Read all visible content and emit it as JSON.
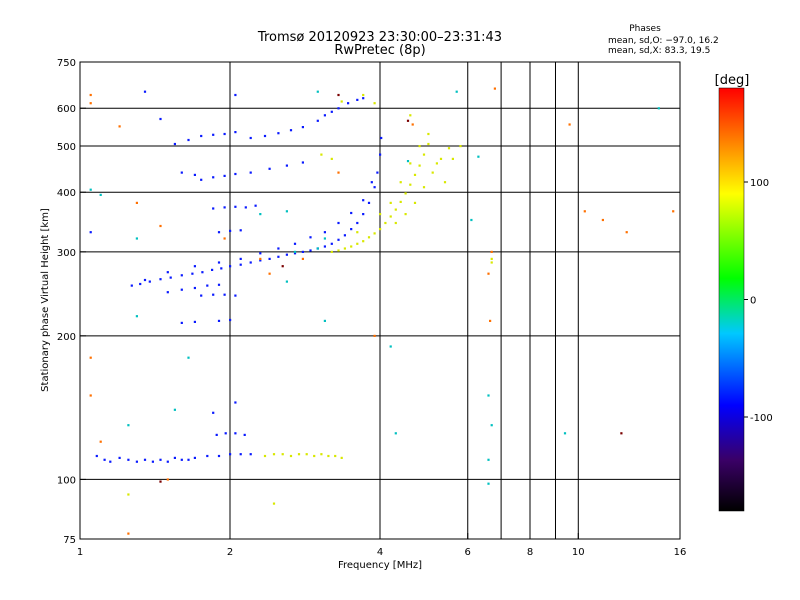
{
  "chart_data": {
    "type": "scatter",
    "title": "Tromsø 20120923 23:30:00–23:31:43",
    "subtitle": "RwPretec (8p)",
    "xlabel": "Frequency [MHz]",
    "ylabel": "Stationary phase Virtual Height [km]",
    "x_scale": "log",
    "y_scale": "log",
    "xlim": [
      1,
      16
    ],
    "ylim": [
      75,
      750
    ],
    "x_ticks": [
      1,
      2,
      4,
      6,
      8,
      10,
      16
    ],
    "y_ticks": [
      75,
      100,
      200,
      300,
      400,
      500,
      600,
      750
    ],
    "x_gridlines": [
      2,
      4,
      6,
      7,
      8,
      9,
      10
    ],
    "y_gridlines": [
      100,
      200,
      300,
      400,
      500,
      600
    ],
    "grid": true,
    "legend": {
      "title": "Phases",
      "lines": [
        "mean, sd,O: −97.0, 16.2",
        "mean, sd,X:  83.3, 19.5"
      ],
      "placement": "top-right"
    },
    "colorbar": {
      "label": "[deg]",
      "range": [
        -180,
        180
      ],
      "ticks": [
        -100,
        0,
        100
      ],
      "placement": "right",
      "colors": [
        "#000000",
        "#3a0066",
        "#0000ff",
        "#00c8ff",
        "#00ff00",
        "#ffff00",
        "#ff0000"
      ]
    },
    "series": [
      {
        "points": [
          [
            1.27,
            255
          ],
          [
            1.32,
            257
          ],
          [
            1.38,
            260
          ],
          [
            1.45,
            263
          ],
          [
            1.52,
            265
          ],
          [
            1.6,
            268
          ],
          [
            1.68,
            270
          ],
          [
            1.76,
            272
          ],
          [
            1.84,
            275
          ],
          [
            1.92,
            277
          ],
          [
            2.0,
            280
          ],
          [
            2.1,
            282
          ],
          [
            2.2,
            285
          ],
          [
            2.3,
            288
          ],
          [
            2.4,
            290
          ],
          [
            2.5,
            293
          ],
          [
            2.6,
            296
          ],
          [
            2.7,
            298
          ],
          [
            2.8,
            300
          ],
          [
            2.9,
            302
          ],
          [
            3.0,
            305
          ],
          [
            3.1,
            308
          ],
          [
            3.2,
            312
          ],
          [
            3.3,
            318
          ],
          [
            3.4,
            325
          ],
          [
            3.5,
            335
          ],
          [
            3.6,
            345
          ],
          [
            3.7,
            360
          ],
          [
            3.8,
            380
          ],
          [
            3.9,
            410
          ],
          [
            3.95,
            440
          ],
          [
            4.0,
            480
          ],
          [
            4.02,
            520
          ],
          [
            1.35,
            262
          ],
          [
            1.5,
            272
          ],
          [
            1.7,
            280
          ],
          [
            1.9,
            285
          ],
          [
            2.1,
            290
          ],
          [
            2.3,
            298
          ],
          [
            2.5,
            305
          ],
          [
            2.7,
            312
          ],
          [
            2.9,
            322
          ],
          [
            3.1,
            330
          ],
          [
            3.3,
            345
          ],
          [
            3.5,
            362
          ],
          [
            3.7,
            385
          ],
          [
            3.85,
            420
          ],
          [
            1.5,
            247
          ],
          [
            1.6,
            250
          ],
          [
            1.7,
            252
          ],
          [
            1.8,
            255
          ],
          [
            1.9,
            256
          ],
          [
            1.75,
            243
          ],
          [
            1.85,
            244
          ],
          [
            1.95,
            244
          ],
          [
            2.05,
            243
          ],
          [
            1.6,
            213
          ],
          [
            1.7,
            214
          ],
          [
            1.9,
            215
          ],
          [
            2.0,
            216
          ],
          [
            1.55,
            505
          ],
          [
            1.65,
            515
          ],
          [
            1.75,
            525
          ],
          [
            1.85,
            528
          ],
          [
            1.95,
            530
          ],
          [
            2.05,
            535
          ],
          [
            2.2,
            520
          ],
          [
            2.35,
            525
          ],
          [
            2.5,
            532
          ],
          [
            2.65,
            540
          ],
          [
            2.8,
            548
          ],
          [
            3.0,
            565
          ],
          [
            3.1,
            580
          ],
          [
            3.2,
            590
          ],
          [
            3.3,
            600
          ],
          [
            3.45,
            615
          ],
          [
            3.6,
            625
          ],
          [
            3.7,
            630
          ],
          [
            1.75,
            425
          ],
          [
            1.85,
            430
          ],
          [
            1.95,
            433
          ],
          [
            2.05,
            437
          ],
          [
            2.2,
            440
          ],
          [
            2.4,
            448
          ],
          [
            2.6,
            455
          ],
          [
            2.8,
            462
          ],
          [
            1.6,
            440
          ],
          [
            1.7,
            435
          ],
          [
            1.85,
            370
          ],
          [
            1.95,
            372
          ],
          [
            2.05,
            373
          ],
          [
            2.15,
            372
          ],
          [
            2.25,
            375
          ],
          [
            1.9,
            330
          ],
          [
            2.0,
            332
          ],
          [
            2.1,
            333
          ],
          [
            1.08,
            112
          ],
          [
            1.12,
            110
          ],
          [
            1.15,
            109
          ],
          [
            1.2,
            111
          ],
          [
            1.25,
            110
          ],
          [
            1.3,
            109
          ],
          [
            1.35,
            110
          ],
          [
            1.4,
            109
          ],
          [
            1.45,
            110
          ],
          [
            1.5,
            109
          ],
          [
            1.55,
            111
          ],
          [
            1.6,
            110
          ],
          [
            1.65,
            110
          ],
          [
            1.7,
            111
          ],
          [
            1.8,
            112
          ],
          [
            1.9,
            112
          ],
          [
            2.0,
            113
          ],
          [
            2.1,
            113
          ],
          [
            2.2,
            113
          ],
          [
            1.88,
            124
          ],
          [
            1.96,
            125
          ],
          [
            2.05,
            125
          ],
          [
            2.14,
            124
          ],
          [
            1.35,
            650
          ],
          [
            1.45,
            570
          ],
          [
            2.05,
            640
          ],
          [
            1.05,
            330
          ],
          [
            1.85,
            138
          ],
          [
            2.05,
            145
          ]
        ],
        "color": "#0a1aff"
      },
      {
        "points": [
          [
            3.2,
            300
          ],
          [
            3.3,
            302
          ],
          [
            3.4,
            305
          ],
          [
            3.5,
            308
          ],
          [
            3.6,
            312
          ],
          [
            3.7,
            316
          ],
          [
            3.8,
            322
          ],
          [
            3.9,
            328
          ],
          [
            4.0,
            335
          ],
          [
            4.1,
            345
          ],
          [
            4.2,
            356
          ],
          [
            4.3,
            368
          ],
          [
            4.4,
            382
          ],
          [
            4.5,
            398
          ],
          [
            4.6,
            415
          ],
          [
            4.7,
            435
          ],
          [
            4.8,
            455
          ],
          [
            4.9,
            480
          ],
          [
            5.0,
            505
          ],
          [
            4.3,
            345
          ],
          [
            4.5,
            360
          ],
          [
            4.7,
            380
          ],
          [
            4.9,
            410
          ],
          [
            5.1,
            440
          ],
          [
            5.3,
            470
          ],
          [
            5.5,
            495
          ],
          [
            4.4,
            420
          ],
          [
            4.6,
            460
          ],
          [
            4.8,
            500
          ],
          [
            5.0,
            530
          ],
          [
            5.2,
            460
          ],
          [
            5.4,
            420
          ],
          [
            5.6,
            470
          ],
          [
            5.8,
            500
          ],
          [
            3.6,
            330
          ],
          [
            4.0,
            360
          ],
          [
            4.2,
            380
          ],
          [
            2.35,
            112
          ],
          [
            2.45,
            113
          ],
          [
            2.55,
            113
          ],
          [
            2.65,
            112
          ],
          [
            2.75,
            113
          ],
          [
            2.85,
            113
          ],
          [
            2.95,
            112
          ],
          [
            3.05,
            113
          ],
          [
            3.15,
            112
          ],
          [
            3.25,
            112
          ],
          [
            3.35,
            111
          ],
          [
            3.35,
            620
          ],
          [
            3.7,
            640
          ],
          [
            3.9,
            615
          ],
          [
            4.6,
            580
          ],
          [
            3.05,
            480
          ],
          [
            3.2,
            470
          ],
          [
            1.25,
            93
          ],
          [
            2.45,
            89
          ],
          [
            6.7,
            290
          ],
          [
            6.7,
            285
          ]
        ],
        "color": "#d8e800"
      },
      {
        "points": [
          [
            2.7,
            300
          ],
          [
            3.0,
            305
          ],
          [
            3.1,
            320
          ],
          [
            2.6,
            260
          ],
          [
            3.0,
            650
          ],
          [
            4.2,
            190
          ],
          [
            1.05,
            405
          ],
          [
            1.1,
            395
          ],
          [
            1.3,
            320
          ],
          [
            1.3,
            220
          ],
          [
            1.25,
            130
          ],
          [
            1.55,
            140
          ],
          [
            1.65,
            180
          ],
          [
            2.6,
            365
          ],
          [
            3.1,
            215
          ],
          [
            4.3,
            125
          ],
          [
            6.6,
            150
          ],
          [
            6.7,
            130
          ],
          [
            6.6,
            110
          ],
          [
            6.6,
            98
          ],
          [
            6.3,
            475
          ],
          [
            6.1,
            350
          ],
          [
            9.4,
            125
          ],
          [
            2.3,
            360
          ],
          [
            4.55,
            465
          ],
          [
            5.7,
            650
          ],
          [
            14.5,
            600
          ]
        ],
        "color": "#00c0c0"
      },
      {
        "points": [
          [
            1.05,
            640
          ],
          [
            1.05,
            615
          ],
          [
            1.2,
            550
          ],
          [
            1.3,
            380
          ],
          [
            1.45,
            340
          ],
          [
            1.95,
            320
          ],
          [
            2.3,
            290
          ],
          [
            2.8,
            290
          ],
          [
            1.05,
            180
          ],
          [
            1.05,
            150
          ],
          [
            1.1,
            120
          ],
          [
            1.5,
            100
          ],
          [
            1.25,
            77
          ],
          [
            2.4,
            270
          ],
          [
            3.3,
            440
          ],
          [
            3.9,
            200
          ],
          [
            4.65,
            555
          ],
          [
            6.8,
            660
          ],
          [
            6.7,
            300
          ],
          [
            6.6,
            270
          ],
          [
            10.3,
            365
          ],
          [
            11.2,
            350
          ],
          [
            12.5,
            330
          ],
          [
            15.5,
            365
          ],
          [
            9.6,
            555
          ],
          [
            6.65,
            215
          ]
        ],
        "color": "#ff7000"
      },
      {
        "points": [
          [
            12.2,
            125
          ],
          [
            1.45,
            99
          ],
          [
            4.55,
            565
          ],
          [
            2.55,
            280
          ],
          [
            3.3,
            640
          ]
        ],
        "color": "#7a0000"
      }
    ]
  }
}
